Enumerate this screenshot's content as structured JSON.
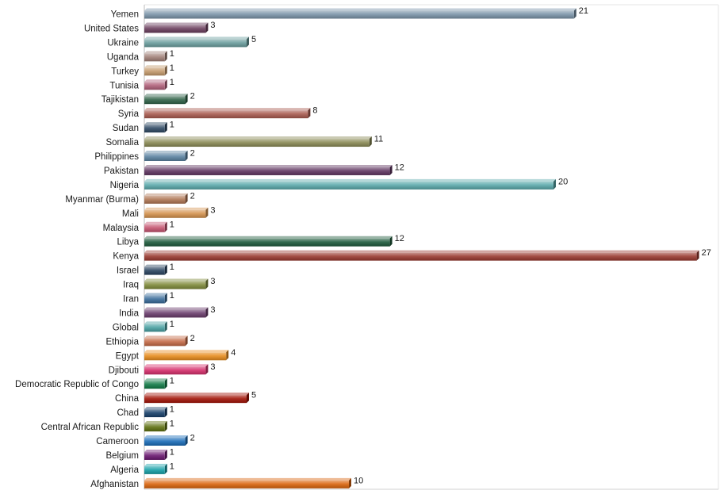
{
  "chart_data": {
    "type": "bar",
    "orientation": "horizontal",
    "title": "",
    "xlabel": "",
    "ylabel": "",
    "xlim": [
      0,
      27
    ],
    "grid": false,
    "legend": "none",
    "categories": [
      "Yemen",
      "United States",
      "Ukraine",
      "Uganda",
      "Turkey",
      "Tunisia",
      "Tajikistan",
      "Syria",
      "Sudan",
      "Somalia",
      "Philippines",
      "Pakistan",
      "Nigeria",
      "Myanmar (Burma)",
      "Mali",
      "Malaysia",
      "Libya",
      "Kenya",
      "Israel",
      "Iraq",
      "Iran",
      "India",
      "Global",
      "Ethiopia",
      "Egypt",
      "Djibouti",
      "Democratic Republic of Congo",
      "China",
      "Chad",
      "Central African Republic",
      "Cameroon",
      "Belgium",
      "Algeria",
      "Afghanistan"
    ],
    "values": [
      21,
      3,
      5,
      1,
      1,
      1,
      2,
      8,
      1,
      11,
      2,
      12,
      20,
      2,
      3,
      1,
      12,
      27,
      1,
      3,
      1,
      3,
      1,
      2,
      4,
      3,
      1,
      5,
      1,
      1,
      2,
      1,
      1,
      10
    ],
    "value_labels": [
      "21",
      "3",
      "5",
      "1",
      "1",
      "1",
      "2",
      "8",
      "1",
      "11",
      "2",
      "12",
      "20",
      "2",
      "3",
      "1",
      "12",
      "27",
      "1",
      "3",
      "1",
      "3",
      "1",
      "2",
      "4",
      "3",
      "1",
      "5",
      "1",
      "1",
      "2",
      "1",
      "1",
      "10"
    ],
    "colors": [
      "#7a93a8",
      "#6b3f5e",
      "#6a9d9d",
      "#a08077",
      "#c49a6c",
      "#b0607a",
      "#2f6248",
      "#a85a4f",
      "#2f4a64",
      "#8a8a55",
      "#5a82a0",
      "#5f3560",
      "#5aa8aa",
      "#b07755",
      "#d4924e",
      "#c45470",
      "#1f5b3c",
      "#9a3a30",
      "#2a4460",
      "#7f8a3a",
      "#3a6c9a",
      "#6a3c6c",
      "#4aa0a2",
      "#c46a46",
      "#e88c1e",
      "#d62f6c",
      "#117a46",
      "#a21408",
      "#18406a",
      "#5e7010",
      "#1a6cb8",
      "#6a1870",
      "#18a0a8",
      "#da640e"
    ]
  }
}
